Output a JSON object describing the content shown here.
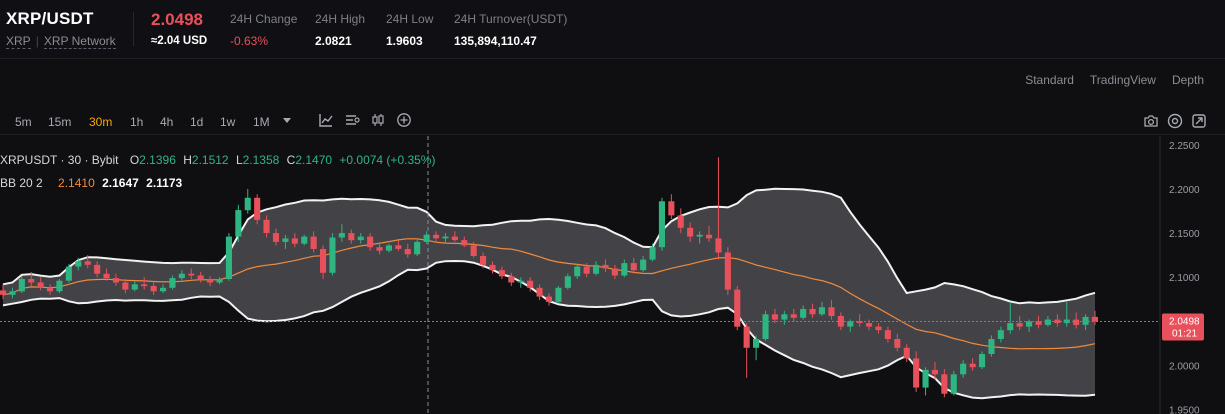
{
  "header": {
    "symbol": "XRP/USDT",
    "base": "XRP",
    "network": "XRP Network",
    "last_price": "2.0498",
    "fiat_price": "≈2.04 USD",
    "stats": [
      {
        "label": "24H Change",
        "value": "-0.63%",
        "negative": true
      },
      {
        "label": "24H High",
        "value": "2.0821"
      },
      {
        "label": "24H Low",
        "value": "1.9603"
      },
      {
        "label": "24H Turnover(USDT)",
        "value": "135,894,110.47"
      }
    ]
  },
  "views": [
    "Standard",
    "TradingView",
    "Depth"
  ],
  "toolbar": {
    "timeframes": [
      "5m",
      "15m",
      "30m",
      "1h",
      "4h",
      "1d",
      "1w",
      "1M"
    ],
    "active_timeframe": "30m",
    "dropdown_icon": "caret-down-icon",
    "tool_icons": [
      "line-chart-icon",
      "indicators-icon",
      "candles-icon",
      "add-icon"
    ],
    "right_icons": [
      "camera-icon",
      "settings-icon",
      "fullscreen-icon"
    ]
  },
  "legend": {
    "title": "XRPUSDT · 30 · Bybit",
    "o_label": "O",
    "o": "2.1396",
    "h_label": "H",
    "h": "2.1512",
    "l_label": "L",
    "l": "2.1358",
    "c_label": "C",
    "c": "2.1470",
    "change": "+0.0074 (+0.35%)",
    "bb_label": "BB 20 2",
    "bb_mid": "2.1410",
    "bb_upper": "2.1647",
    "bb_lower": "2.1173"
  },
  "price_axis": {
    "ticks": [
      "2.2500",
      "2.2000",
      "2.1500",
      "2.1000",
      "2.0500",
      "2.0000",
      "1.9500"
    ],
    "last_label": "2.0498",
    "countdown": "01:21"
  },
  "colors": {
    "up": "#2fb582",
    "down": "#e8505b",
    "band": "#5a5a5e",
    "mid": "#f08a3c",
    "accent": "#f7a600"
  },
  "chart_data": {
    "type": "candlestick",
    "interval": "30m",
    "ylim": [
      1.945,
      2.26
    ],
    "last_price": 2.0498,
    "candles": [
      [
        2.085,
        2.092,
        2.075,
        2.08
      ],
      [
        2.08,
        2.088,
        2.076,
        2.084
      ],
      [
        2.084,
        2.101,
        2.082,
        2.098
      ],
      [
        2.098,
        2.106,
        2.09,
        2.094
      ],
      [
        2.094,
        2.1,
        2.085,
        2.088
      ],
      [
        2.088,
        2.092,
        2.08,
        2.084
      ],
      [
        2.084,
        2.098,
        2.082,
        2.096
      ],
      [
        2.096,
        2.115,
        2.094,
        2.112
      ],
      [
        2.112,
        2.122,
        2.108,
        2.118
      ],
      [
        2.118,
        2.125,
        2.11,
        2.114
      ],
      [
        2.114,
        2.118,
        2.1,
        2.104
      ],
      [
        2.104,
        2.11,
        2.096,
        2.099
      ],
      [
        2.099,
        2.104,
        2.09,
        2.094
      ],
      [
        2.094,
        2.098,
        2.082,
        2.086
      ],
      [
        2.086,
        2.096,
        2.084,
        2.092
      ],
      [
        2.092,
        2.1,
        2.086,
        2.09
      ],
      [
        2.09,
        2.094,
        2.08,
        2.084
      ],
      [
        2.084,
        2.092,
        2.082,
        2.088
      ],
      [
        2.088,
        2.102,
        2.086,
        2.099
      ],
      [
        2.099,
        2.108,
        2.096,
        2.104
      ],
      [
        2.104,
        2.11,
        2.098,
        2.102
      ],
      [
        2.102,
        2.106,
        2.094,
        2.097
      ],
      [
        2.097,
        2.101,
        2.09,
        2.094
      ],
      [
        2.094,
        2.1,
        2.092,
        2.098
      ],
      [
        2.098,
        2.15,
        2.096,
        2.146
      ],
      [
        2.146,
        2.182,
        2.14,
        2.176
      ],
      [
        2.176,
        2.2,
        2.172,
        2.19
      ],
      [
        2.19,
        2.194,
        2.16,
        2.165
      ],
      [
        2.165,
        2.17,
        2.145,
        2.15
      ],
      [
        2.15,
        2.155,
        2.136,
        2.14
      ],
      [
        2.14,
        2.148,
        2.132,
        2.144
      ],
      [
        2.144,
        2.15,
        2.134,
        2.138
      ],
      [
        2.138,
        2.148,
        2.136,
        2.146
      ],
      [
        2.146,
        2.152,
        2.128,
        2.132
      ],
      [
        2.132,
        2.136,
        2.098,
        2.105
      ],
      [
        2.105,
        2.15,
        2.102,
        2.145
      ],
      [
        2.145,
        2.16,
        2.14,
        2.15
      ],
      [
        2.15,
        2.154,
        2.138,
        2.142
      ],
      [
        2.142,
        2.15,
        2.138,
        2.146
      ],
      [
        2.146,
        2.15,
        2.13,
        2.134
      ],
      [
        2.134,
        2.14,
        2.126,
        2.13
      ],
      [
        2.13,
        2.138,
        2.128,
        2.136
      ],
      [
        2.136,
        2.142,
        2.13,
        2.132
      ],
      [
        2.132,
        2.138,
        2.122,
        2.126
      ],
      [
        2.126,
        2.142,
        2.124,
        2.14
      ],
      [
        2.14,
        2.152,
        2.138,
        2.148
      ],
      [
        2.148,
        2.152,
        2.14,
        2.144
      ],
      [
        2.144,
        2.15,
        2.138,
        2.146
      ],
      [
        2.146,
        2.152,
        2.14,
        2.142
      ],
      [
        2.142,
        2.146,
        2.134,
        2.136
      ],
      [
        2.136,
        2.14,
        2.122,
        2.124
      ],
      [
        2.124,
        2.128,
        2.11,
        2.114
      ],
      [
        2.114,
        2.118,
        2.104,
        2.108
      ],
      [
        2.108,
        2.112,
        2.098,
        2.101
      ],
      [
        2.101,
        2.105,
        2.09,
        2.094
      ],
      [
        2.094,
        2.1,
        2.088,
        2.096
      ],
      [
        2.096,
        2.1,
        2.084,
        2.088
      ],
      [
        2.088,
        2.092,
        2.074,
        2.078
      ],
      [
        2.078,
        2.082,
        2.068,
        2.072
      ],
      [
        2.072,
        2.09,
        2.07,
        2.088
      ],
      [
        2.088,
        2.104,
        2.086,
        2.101
      ],
      [
        2.101,
        2.115,
        2.098,
        2.112
      ],
      [
        2.112,
        2.116,
        2.1,
        2.104
      ],
      [
        2.104,
        2.118,
        2.102,
        2.114
      ],
      [
        2.114,
        2.12,
        2.106,
        2.11
      ],
      [
        2.11,
        2.114,
        2.098,
        2.102
      ],
      [
        2.102,
        2.12,
        2.1,
        2.116
      ],
      [
        2.116,
        2.122,
        2.104,
        2.108
      ],
      [
        2.108,
        2.124,
        2.106,
        2.12
      ],
      [
        2.12,
        2.138,
        2.118,
        2.134
      ],
      [
        2.134,
        2.19,
        2.13,
        2.186
      ],
      [
        2.186,
        2.194,
        2.166,
        2.17
      ],
      [
        2.17,
        2.178,
        2.15,
        2.156
      ],
      [
        2.156,
        2.162,
        2.14,
        2.146
      ],
      [
        2.146,
        2.152,
        2.138,
        2.148
      ],
      [
        2.148,
        2.158,
        2.14,
        2.144
      ],
      [
        2.144,
        2.236,
        2.12,
        2.128
      ],
      [
        2.128,
        2.134,
        2.08,
        2.086
      ],
      [
        2.086,
        2.09,
        2.04,
        2.044
      ],
      [
        2.044,
        2.048,
        1.986,
        2.02
      ],
      [
        2.02,
        2.034,
        2.006,
        2.03
      ],
      [
        2.03,
        2.062,
        2.028,
        2.058
      ],
      [
        2.058,
        2.064,
        2.048,
        2.052
      ],
      [
        2.052,
        2.062,
        2.046,
        2.058
      ],
      [
        2.058,
        2.064,
        2.05,
        2.054
      ],
      [
        2.054,
        2.068,
        2.052,
        2.064
      ],
      [
        2.064,
        2.07,
        2.054,
        2.058
      ],
      [
        2.058,
        2.072,
        2.056,
        2.066
      ],
      [
        2.066,
        2.074,
        2.052,
        2.056
      ],
      [
        2.056,
        2.06,
        2.04,
        2.044
      ],
      [
        2.044,
        2.052,
        2.038,
        2.05
      ],
      [
        2.05,
        2.058,
        2.044,
        2.048
      ],
      [
        2.048,
        2.052,
        2.04,
        2.044
      ],
      [
        2.044,
        2.048,
        2.036,
        2.04
      ],
      [
        2.04,
        2.044,
        2.026,
        2.03
      ],
      [
        2.03,
        2.036,
        2.016,
        2.02
      ],
      [
        2.02,
        2.024,
        2.004,
        2.008
      ],
      [
        2.008,
        2.016,
        1.97,
        1.975
      ],
      [
        1.975,
        1.998,
        1.966,
        1.995
      ],
      [
        1.995,
        2.004,
        1.984,
        1.99
      ],
      [
        1.99,
        1.996,
        1.964,
        1.968
      ],
      [
        1.968,
        1.994,
        1.966,
        1.99
      ],
      [
        1.99,
        2.006,
        1.986,
        2.002
      ],
      [
        2.002,
        2.008,
        1.994,
        1.998
      ],
      [
        1.998,
        2.016,
        1.996,
        2.013
      ],
      [
        2.013,
        2.034,
        2.01,
        2.03
      ],
      [
        2.03,
        2.044,
        2.026,
        2.04
      ],
      [
        2.04,
        2.072,
        2.036,
        2.048
      ],
      [
        2.048,
        2.056,
        2.04,
        2.044
      ],
      [
        2.044,
        2.052,
        2.038,
        2.05
      ],
      [
        2.05,
        2.056,
        2.042,
        2.046
      ],
      [
        2.046,
        2.056,
        2.044,
        2.052
      ],
      [
        2.052,
        2.058,
        2.044,
        2.048
      ],
      [
        2.048,
        2.072,
        2.044,
        2.052
      ],
      [
        2.052,
        2.06,
        2.042,
        2.046
      ],
      [
        2.046,
        2.058,
        2.04,
        2.055
      ],
      [
        2.055,
        2.062,
        2.046,
        2.05
      ]
    ]
  }
}
